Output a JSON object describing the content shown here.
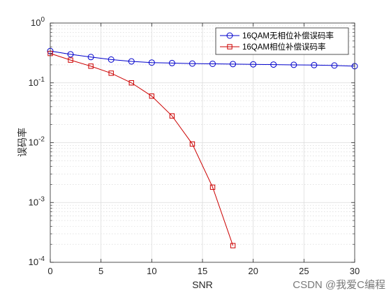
{
  "chart_data": {
    "type": "line",
    "title": "",
    "xlabel": "SNR",
    "ylabel": "误码率",
    "xlim": [
      0,
      30
    ],
    "ylim": [
      0.0001,
      1
    ],
    "yscale": "log",
    "grid": true,
    "minor_grid": true,
    "legend_position": "top-right",
    "x_ticks": [
      0,
      5,
      10,
      15,
      20,
      25,
      30
    ],
    "x_tick_labels": [
      "0",
      "5",
      "10",
      "15",
      "20",
      "25",
      "30"
    ],
    "y_ticks": [
      0.0001,
      0.001,
      0.01,
      0.1,
      1
    ],
    "y_tick_labels": [
      {
        "base": "10",
        "exp": "-4"
      },
      {
        "base": "10",
        "exp": "-3"
      },
      {
        "base": "10",
        "exp": "-2"
      },
      {
        "base": "10",
        "exp": "-1"
      },
      {
        "base": "10",
        "exp": "0"
      }
    ],
    "series": [
      {
        "name": "16QAM无相位补偿误码率",
        "color": "#0000cc",
        "marker": "circle",
        "x": [
          0,
          2,
          4,
          6,
          8,
          10,
          12,
          14,
          16,
          18,
          20,
          22,
          24,
          26,
          28,
          30
        ],
        "values": [
          0.34,
          0.3,
          0.27,
          0.245,
          0.228,
          0.218,
          0.214,
          0.21,
          0.208,
          0.206,
          0.204,
          0.202,
          0.2,
          0.198,
          0.195,
          0.19
        ]
      },
      {
        "name": "16QAM相位补偿误码率",
        "color": "#cc0000",
        "marker": "square",
        "x": [
          0,
          2,
          4,
          6,
          8,
          10,
          12,
          14,
          16,
          18
        ],
        "values": [
          0.31,
          0.24,
          0.19,
          0.145,
          0.1,
          0.06,
          0.028,
          0.0095,
          0.0018,
          0.00019
        ]
      }
    ]
  },
  "watermark": {
    "text": "CSDN @我爱C编程"
  }
}
